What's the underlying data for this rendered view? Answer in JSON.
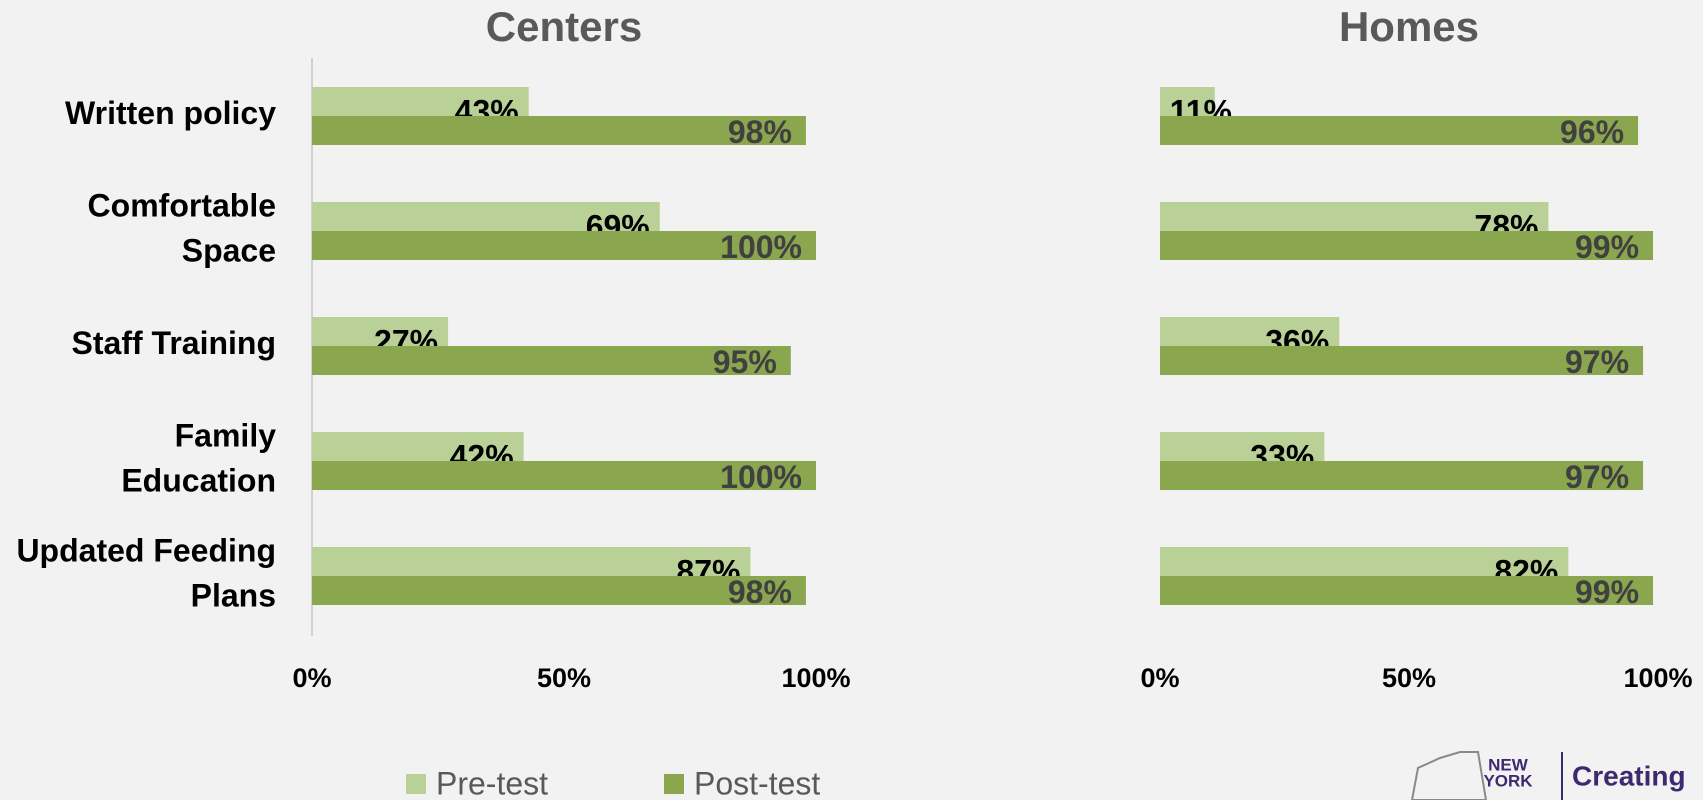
{
  "chart_data": [
    {
      "type": "bar",
      "orientation": "horizontal",
      "title": "Centers",
      "axis_line": true,
      "categories": [
        "Written policy",
        "Comfortable Space",
        "Staff Training",
        "Family Education",
        "Updated Feeding Plans"
      ],
      "series": [
        {
          "name": "Pre-test",
          "color": "#b9d197",
          "values": [
            43,
            69,
            27,
            42,
            87
          ],
          "value_labels": [
            "43%",
            "69%",
            "27%",
            "42%",
            "87%"
          ]
        },
        {
          "name": "Post-test",
          "color": "#8aa64f",
          "values": [
            98,
            100,
            95,
            100,
            98
          ],
          "value_labels": [
            "98%",
            "100%",
            "95%",
            "100%",
            "98%"
          ]
        }
      ],
      "xlim": [
        0,
        100
      ],
      "xticks": [
        {
          "value": 0,
          "label": "0%"
        },
        {
          "value": 50,
          "label": "50%"
        },
        {
          "value": 100,
          "label": "100%"
        }
      ]
    },
    {
      "type": "bar",
      "orientation": "horizontal",
      "title": "Homes",
      "axis_line": false,
      "categories": [
        null,
        null,
        null,
        null,
        null
      ],
      "series": [
        {
          "name": "Pre-test",
          "color": "#b9d197",
          "values": [
            11,
            78,
            36,
            33,
            82
          ],
          "value_labels": [
            "11%",
            "78%",
            "36%",
            "33%",
            "82%"
          ]
        },
        {
          "name": "Post-test",
          "color": "#8aa64f",
          "values": [
            96,
            99,
            97,
            97,
            99
          ],
          "value_labels": [
            "96%",
            "99%",
            "97%",
            "97%",
            "99%"
          ]
        }
      ],
      "xlim": [
        0,
        100
      ],
      "xticks": [
        {
          "value": 0,
          "label": "0%"
        },
        {
          "value": 50,
          "label": "50%"
        },
        {
          "value": 100,
          "label": "100%"
        }
      ]
    }
  ],
  "logo": {
    "state": [
      "NEW",
      "YORK"
    ],
    "text": "Creating"
  }
}
